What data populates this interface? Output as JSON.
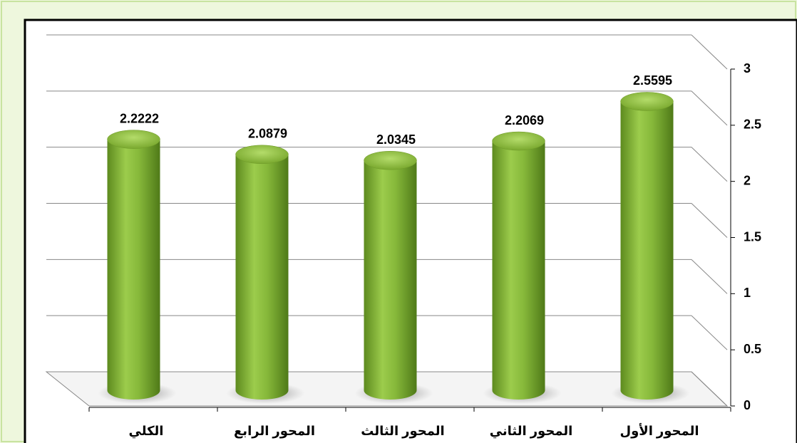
{
  "chart_data": {
    "type": "cylinder-bar",
    "categories": [
      "الكلي",
      "المحور الرابع",
      "المحور الثالث",
      "المحور الثاني",
      "المحور الأول"
    ],
    "values": [
      2.2222,
      2.0879,
      2.0345,
      2.2069,
      2.5595
    ],
    "color": "#8bbf3a",
    "ylim": [
      0,
      3
    ],
    "yticks": [
      0,
      0.5,
      1,
      1.5,
      2,
      2.5,
      3
    ],
    "grid": true
  }
}
